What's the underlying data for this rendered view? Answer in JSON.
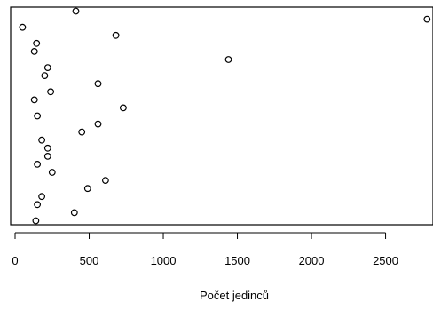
{
  "chart_data": {
    "type": "scatter",
    "title": "",
    "xlabel": "Počet jedinců",
    "ylabel": "",
    "xlim": [
      -30,
      2820
    ],
    "ylim": [
      0.5,
      27.5
    ],
    "xticks": [
      0,
      500,
      1000,
      1500,
      2000,
      2500
    ],
    "xtick_labels": [
      "0",
      "500",
      "1000",
      "1500",
      "2000",
      "2500"
    ],
    "grid": false,
    "legend": "none",
    "series": [
      {
        "points": [
          {
            "x": 2780,
            "y": 26
          },
          {
            "x": 410,
            "y": 27
          },
          {
            "x": 50,
            "y": 25
          },
          {
            "x": 680,
            "y": 24
          },
          {
            "x": 145,
            "y": 23
          },
          {
            "x": 130,
            "y": 22
          },
          {
            "x": 1440,
            "y": 21
          },
          {
            "x": 220,
            "y": 20
          },
          {
            "x": 200,
            "y": 19
          },
          {
            "x": 560,
            "y": 18
          },
          {
            "x": 240,
            "y": 17
          },
          {
            "x": 130,
            "y": 16
          },
          {
            "x": 730,
            "y": 15
          },
          {
            "x": 150,
            "y": 14
          },
          {
            "x": 560,
            "y": 13
          },
          {
            "x": 450,
            "y": 12
          },
          {
            "x": 180,
            "y": 11
          },
          {
            "x": 220,
            "y": 10
          },
          {
            "x": 220,
            "y": 9
          },
          {
            "x": 150,
            "y": 8
          },
          {
            "x": 250,
            "y": 7
          },
          {
            "x": 610,
            "y": 6
          },
          {
            "x": 490,
            "y": 5
          },
          {
            "x": 180,
            "y": 4
          },
          {
            "x": 150,
            "y": 3
          },
          {
            "x": 400,
            "y": 2
          },
          {
            "x": 140,
            "y": 1
          }
        ]
      }
    ]
  }
}
